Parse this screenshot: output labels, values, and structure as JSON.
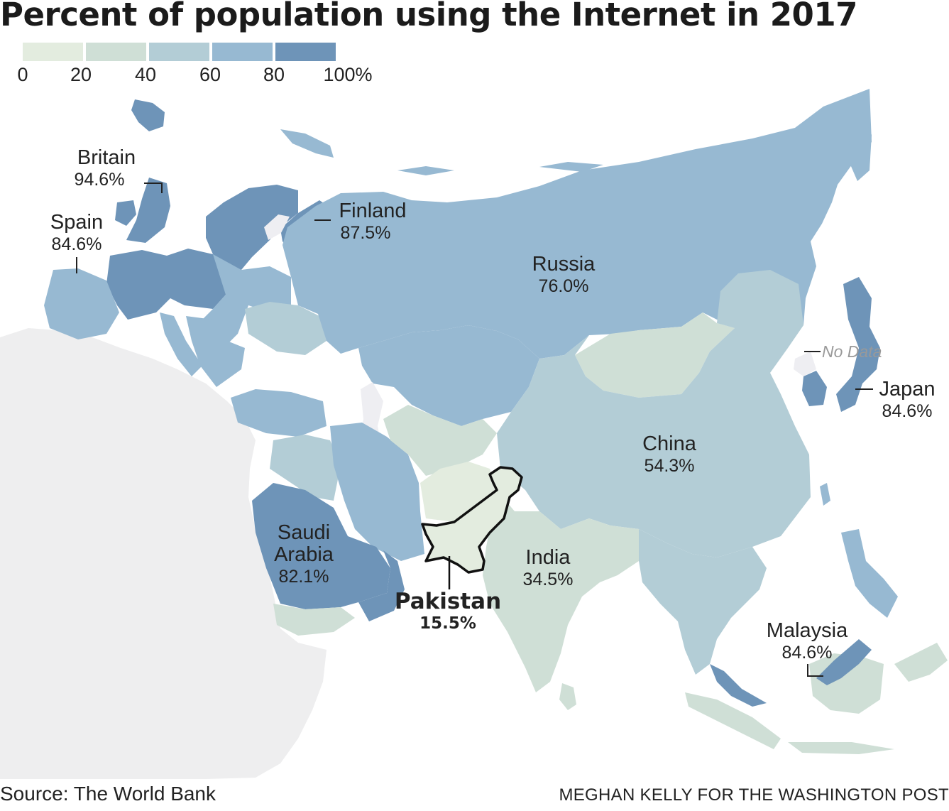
{
  "title": "Percent of population using the Internet in 2017",
  "legend": {
    "ticks": [
      "0",
      "20",
      "40",
      "60",
      "80",
      "100%"
    ],
    "colors": [
      "#e3ecdf",
      "#cfdfd6",
      "#b3cdd6",
      "#97b9d2",
      "#6e94b8"
    ]
  },
  "labels": {
    "britain": {
      "name": "Britain",
      "value": "94.6%"
    },
    "spain": {
      "name": "Spain",
      "value": "84.6%"
    },
    "finland": {
      "name": "Finland",
      "value": "87.5%"
    },
    "russia": {
      "name": "Russia",
      "value": "76.0%"
    },
    "china": {
      "name": "China",
      "value": "54.3%"
    },
    "japan": {
      "name": "Japan",
      "value": "84.6%"
    },
    "saudi": {
      "name": "Saudi Arabia",
      "value": "82.1%"
    },
    "pakistan": {
      "name": "Pakistan",
      "value": "15.5%"
    },
    "india": {
      "name": "India",
      "value": "34.5%"
    },
    "malaysia": {
      "name": "Malaysia",
      "value": "84.6%"
    },
    "nodata": "No Data"
  },
  "map_values": {
    "britain": 94.6,
    "spain": 84.6,
    "finland": 87.5,
    "russia": 76.0,
    "china": 54.3,
    "japan": 84.6,
    "saudi_arabia": 82.1,
    "pakistan": 15.5,
    "india": 34.5,
    "malaysia": 84.6
  },
  "source": "Source: The World Bank",
  "credit": "MEGHAN KELLY FOR THE WASHINGTON POST"
}
